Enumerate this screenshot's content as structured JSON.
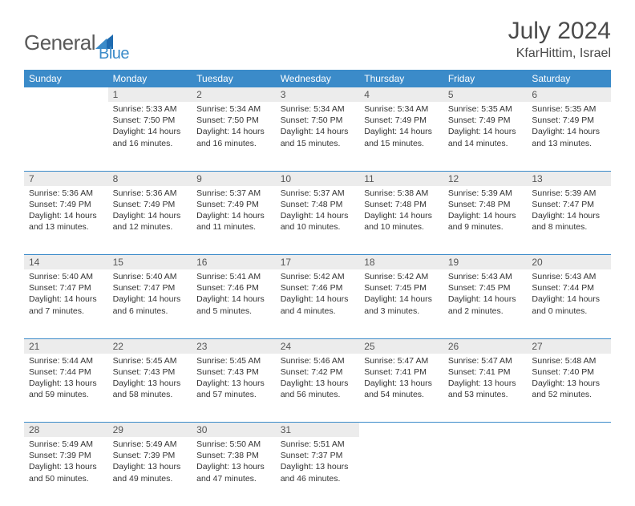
{
  "brand": {
    "name": "General",
    "suffix": "Blue"
  },
  "title": "July 2024",
  "location": "KfarHittim, Israel",
  "colors": {
    "header_bg": "#3b8bc9",
    "header_text": "#ffffff",
    "daynum_bg": "#ececec",
    "border": "#3b8bc9",
    "text": "#333333",
    "logo_gray": "#5a5a5a",
    "logo_blue": "#1f6bb0"
  },
  "day_headers": [
    "Sunday",
    "Monday",
    "Tuesday",
    "Wednesday",
    "Thursday",
    "Friday",
    "Saturday"
  ],
  "weeks": [
    [
      null,
      {
        "n": "1",
        "sr": "5:33 AM",
        "ss": "7:50 PM",
        "dl": "14 hours and 16 minutes."
      },
      {
        "n": "2",
        "sr": "5:34 AM",
        "ss": "7:50 PM",
        "dl": "14 hours and 16 minutes."
      },
      {
        "n": "3",
        "sr": "5:34 AM",
        "ss": "7:50 PM",
        "dl": "14 hours and 15 minutes."
      },
      {
        "n": "4",
        "sr": "5:34 AM",
        "ss": "7:49 PM",
        "dl": "14 hours and 15 minutes."
      },
      {
        "n": "5",
        "sr": "5:35 AM",
        "ss": "7:49 PM",
        "dl": "14 hours and 14 minutes."
      },
      {
        "n": "6",
        "sr": "5:35 AM",
        "ss": "7:49 PM",
        "dl": "14 hours and 13 minutes."
      }
    ],
    [
      {
        "n": "7",
        "sr": "5:36 AM",
        "ss": "7:49 PM",
        "dl": "14 hours and 13 minutes."
      },
      {
        "n": "8",
        "sr": "5:36 AM",
        "ss": "7:49 PM",
        "dl": "14 hours and 12 minutes."
      },
      {
        "n": "9",
        "sr": "5:37 AM",
        "ss": "7:49 PM",
        "dl": "14 hours and 11 minutes."
      },
      {
        "n": "10",
        "sr": "5:37 AM",
        "ss": "7:48 PM",
        "dl": "14 hours and 10 minutes."
      },
      {
        "n": "11",
        "sr": "5:38 AM",
        "ss": "7:48 PM",
        "dl": "14 hours and 10 minutes."
      },
      {
        "n": "12",
        "sr": "5:39 AM",
        "ss": "7:48 PM",
        "dl": "14 hours and 9 minutes."
      },
      {
        "n": "13",
        "sr": "5:39 AM",
        "ss": "7:47 PM",
        "dl": "14 hours and 8 minutes."
      }
    ],
    [
      {
        "n": "14",
        "sr": "5:40 AM",
        "ss": "7:47 PM",
        "dl": "14 hours and 7 minutes."
      },
      {
        "n": "15",
        "sr": "5:40 AM",
        "ss": "7:47 PM",
        "dl": "14 hours and 6 minutes."
      },
      {
        "n": "16",
        "sr": "5:41 AM",
        "ss": "7:46 PM",
        "dl": "14 hours and 5 minutes."
      },
      {
        "n": "17",
        "sr": "5:42 AM",
        "ss": "7:46 PM",
        "dl": "14 hours and 4 minutes."
      },
      {
        "n": "18",
        "sr": "5:42 AM",
        "ss": "7:45 PM",
        "dl": "14 hours and 3 minutes."
      },
      {
        "n": "19",
        "sr": "5:43 AM",
        "ss": "7:45 PM",
        "dl": "14 hours and 2 minutes."
      },
      {
        "n": "20",
        "sr": "5:43 AM",
        "ss": "7:44 PM",
        "dl": "14 hours and 0 minutes."
      }
    ],
    [
      {
        "n": "21",
        "sr": "5:44 AM",
        "ss": "7:44 PM",
        "dl": "13 hours and 59 minutes."
      },
      {
        "n": "22",
        "sr": "5:45 AM",
        "ss": "7:43 PM",
        "dl": "13 hours and 58 minutes."
      },
      {
        "n": "23",
        "sr": "5:45 AM",
        "ss": "7:43 PM",
        "dl": "13 hours and 57 minutes."
      },
      {
        "n": "24",
        "sr": "5:46 AM",
        "ss": "7:42 PM",
        "dl": "13 hours and 56 minutes."
      },
      {
        "n": "25",
        "sr": "5:47 AM",
        "ss": "7:41 PM",
        "dl": "13 hours and 54 minutes."
      },
      {
        "n": "26",
        "sr": "5:47 AM",
        "ss": "7:41 PM",
        "dl": "13 hours and 53 minutes."
      },
      {
        "n": "27",
        "sr": "5:48 AM",
        "ss": "7:40 PM",
        "dl": "13 hours and 52 minutes."
      }
    ],
    [
      {
        "n": "28",
        "sr": "5:49 AM",
        "ss": "7:39 PM",
        "dl": "13 hours and 50 minutes."
      },
      {
        "n": "29",
        "sr": "5:49 AM",
        "ss": "7:39 PM",
        "dl": "13 hours and 49 minutes."
      },
      {
        "n": "30",
        "sr": "5:50 AM",
        "ss": "7:38 PM",
        "dl": "13 hours and 47 minutes."
      },
      {
        "n": "31",
        "sr": "5:51 AM",
        "ss": "7:37 PM",
        "dl": "13 hours and 46 minutes."
      },
      null,
      null,
      null
    ]
  ],
  "labels": {
    "sunrise": "Sunrise:",
    "sunset": "Sunset:",
    "daylight": "Daylight:"
  }
}
